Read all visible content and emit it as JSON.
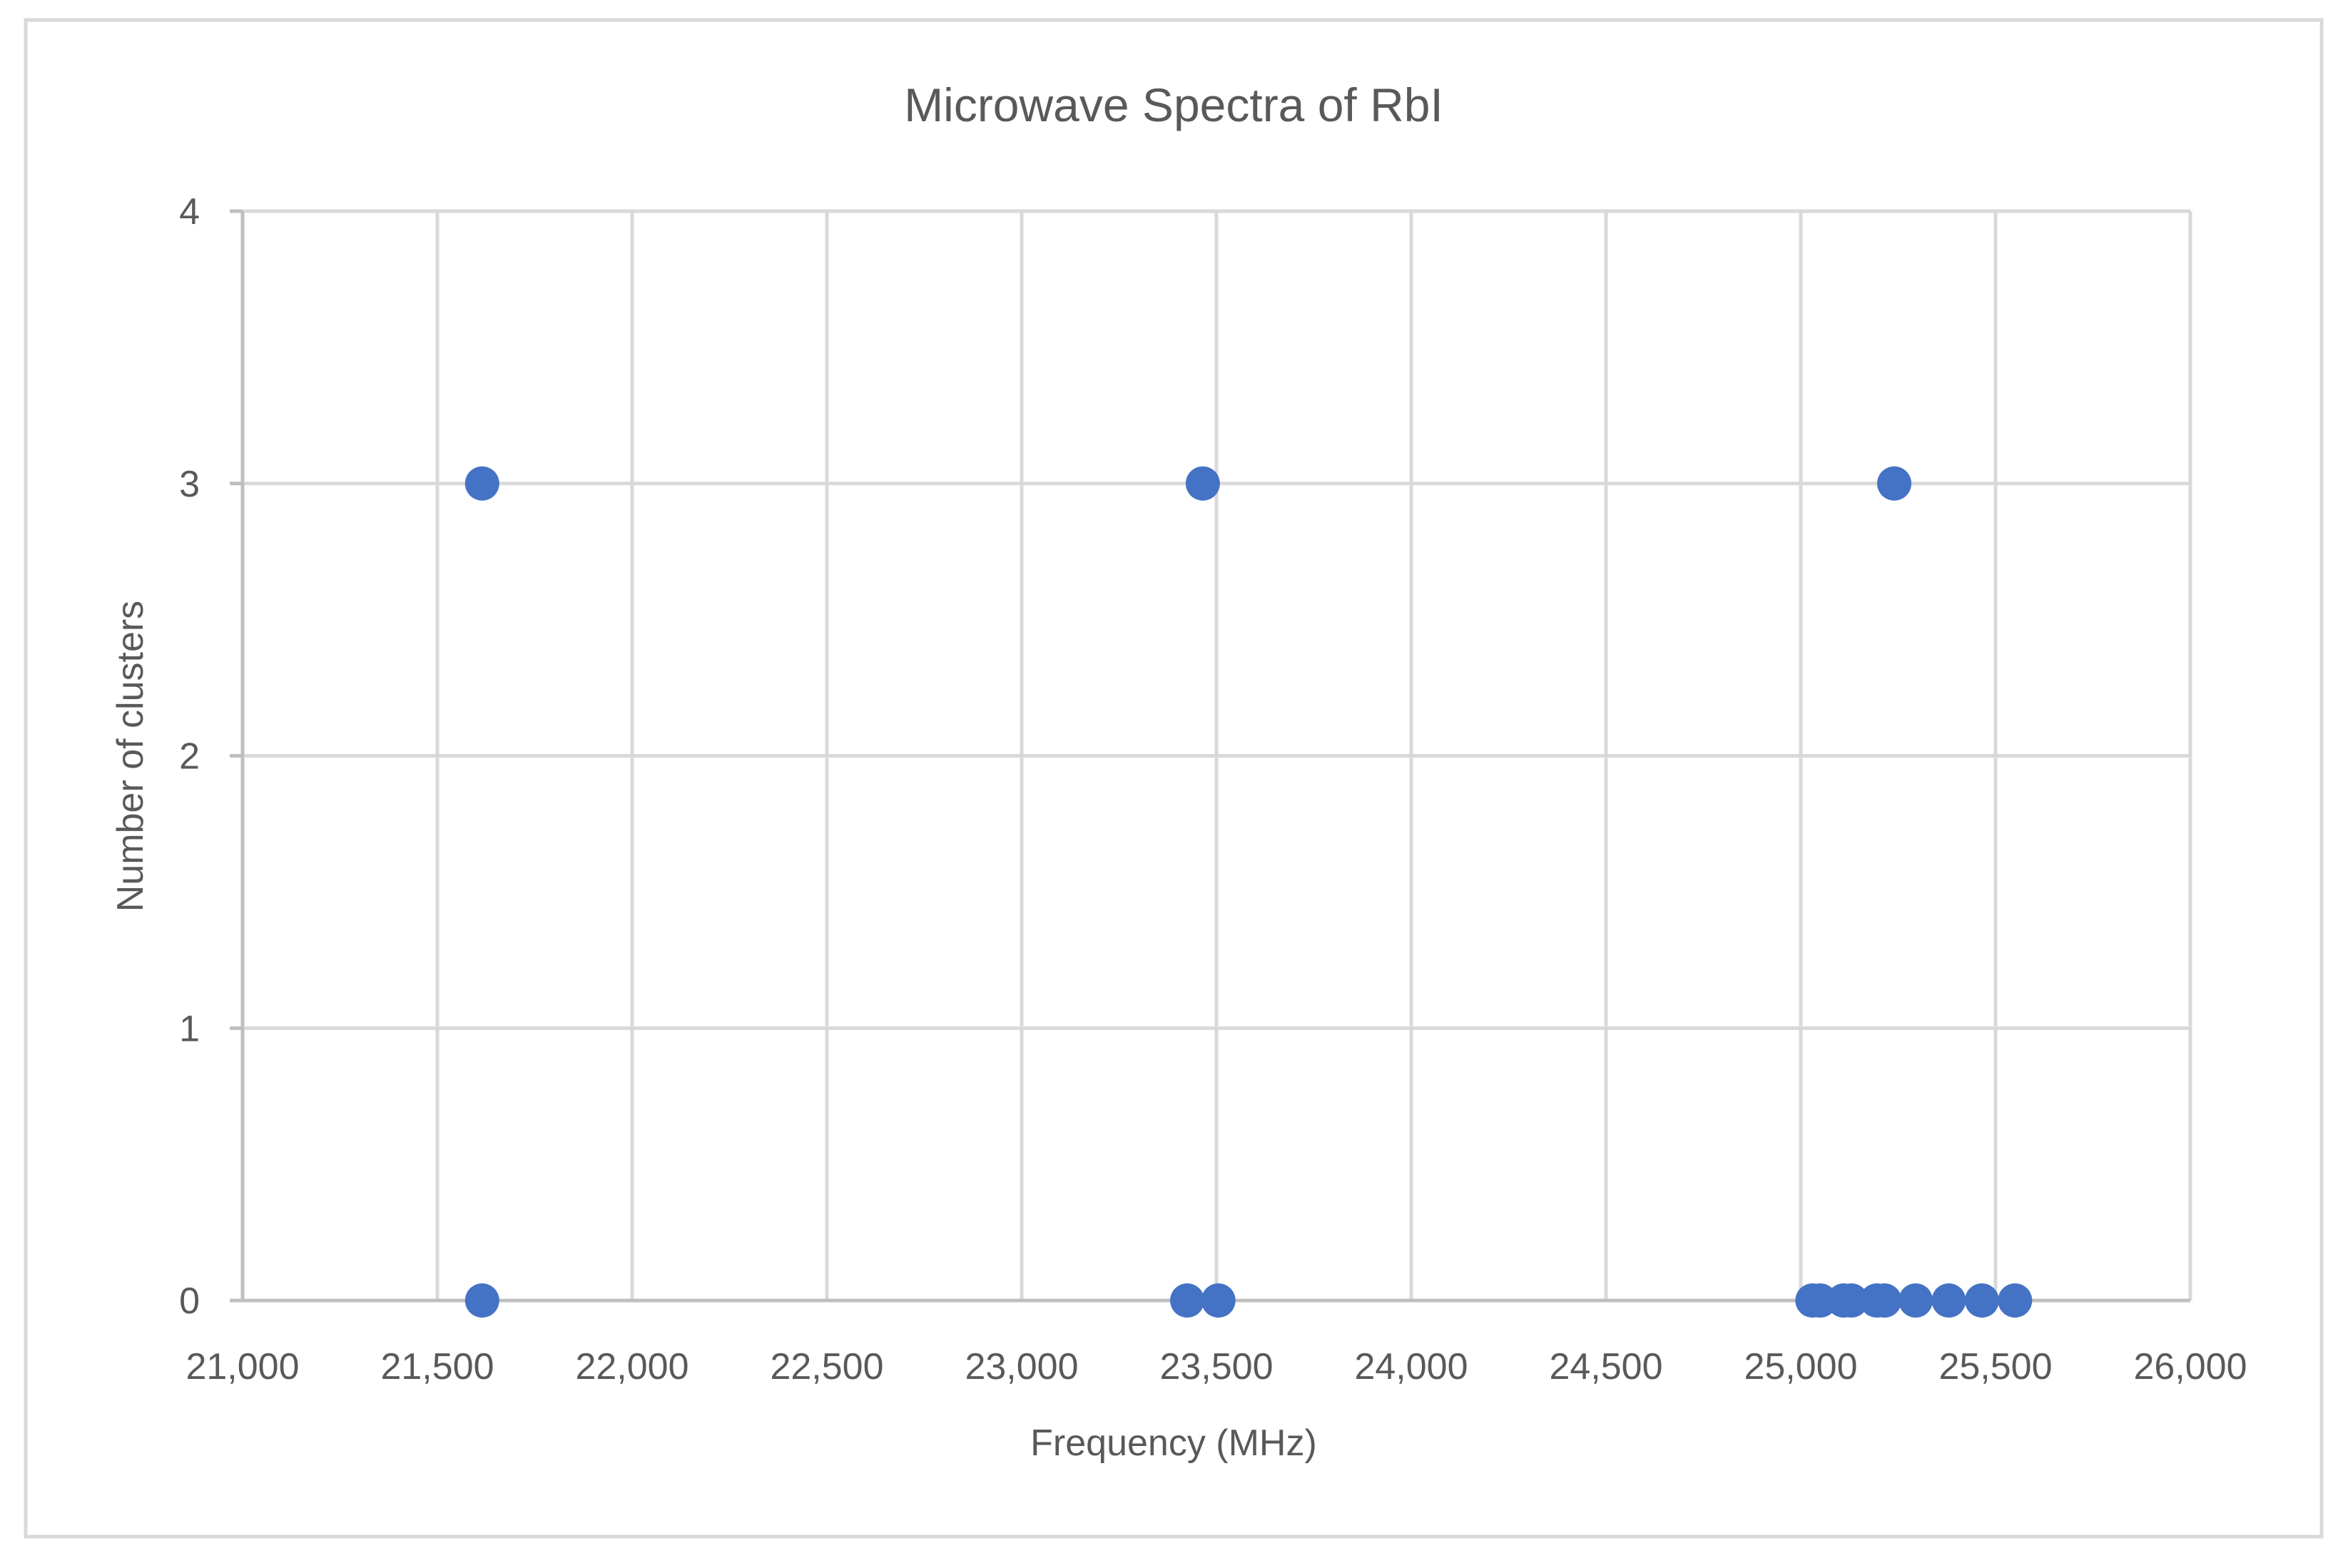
{
  "chart_data": {
    "type": "scatter",
    "title": "Microwave Spectra of RbI",
    "xlabel": "Frequency (MHz)",
    "ylabel": "Number of clusters",
    "xlim": [
      21000,
      26000
    ],
    "ylim": [
      0,
      4
    ],
    "grid": true,
    "legend": "none",
    "x_ticks": [
      21000,
      21500,
      22000,
      22500,
      23000,
      23500,
      24000,
      24500,
      25000,
      25500,
      26000
    ],
    "x_tick_labels": [
      "21,000",
      "21,500",
      "22,000",
      "22,500",
      "23,000",
      "23,500",
      "24,000",
      "24,500",
      "25,000",
      "25,500",
      "26,000"
    ],
    "y_ticks": [
      0,
      1,
      2,
      3,
      4
    ],
    "y_tick_labels": [
      "0",
      "1",
      "2",
      "3",
      "4"
    ],
    "series": [
      {
        "name": "RbI",
        "color": "#4472C4",
        "points": [
          {
            "x": 21615,
            "y": 3
          },
          {
            "x": 21615,
            "y": 0
          },
          {
            "x": 23465,
            "y": 3
          },
          {
            "x": 23425,
            "y": 0
          },
          {
            "x": 23505,
            "y": 0
          },
          {
            "x": 25240,
            "y": 3
          },
          {
            "x": 25030,
            "y": 0
          },
          {
            "x": 25050,
            "y": 0
          },
          {
            "x": 25110,
            "y": 0
          },
          {
            "x": 25130,
            "y": 0
          },
          {
            "x": 25195,
            "y": 0
          },
          {
            "x": 25215,
            "y": 0
          },
          {
            "x": 25295,
            "y": 0
          },
          {
            "x": 25380,
            "y": 0
          },
          {
            "x": 25465,
            "y": 0
          },
          {
            "x": 25550,
            "y": 0
          }
        ]
      }
    ]
  },
  "colors": {
    "background": "#ffffff",
    "frame": "#d9d9d9",
    "grid": "#d9d9d9",
    "axis": "#bfbfbf",
    "text": "#595959",
    "marker": "#4472C4"
  }
}
